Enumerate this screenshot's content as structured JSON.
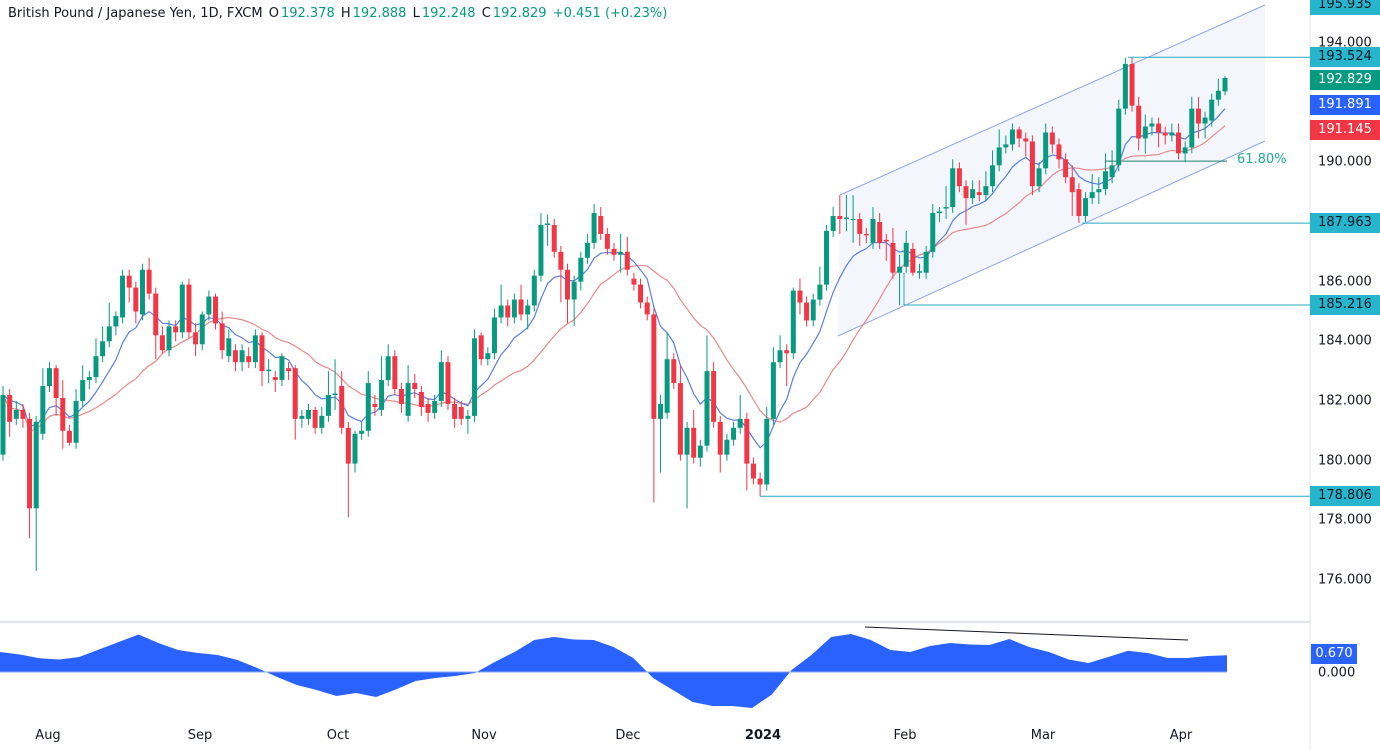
{
  "header": {
    "symbol": "British Pound / Japanese Yen, 1D, FXCM",
    "o_label": "O",
    "o": "192.378",
    "h_label": "H",
    "h": "192.888",
    "l_label": "L",
    "l": "192.248",
    "c_label": "C",
    "c": "192.829",
    "change": "+0.451 (+0.23%)"
  },
  "colors": {
    "up": "#089981",
    "down": "#f23645",
    "fast_ma": "#5b7fe0",
    "slow_ma": "#e88a8a",
    "levels": "#26a9c2",
    "channel": "#8fa6e8",
    "oscillator": "#2962ff"
  },
  "chart_data": {
    "type": "candlestick",
    "title": "British Pound / Japanese Yen, 1D, FXCM",
    "ylim": [
      175.2,
      196.2
    ],
    "y_ticks": [
      "194.000",
      "190.000",
      "186.000",
      "184.000",
      "182.000",
      "180.000",
      "178.000",
      "176.000"
    ],
    "x_ticks": [
      "Aug",
      "Sep",
      "Oct",
      "Nov",
      "Dec",
      "2024",
      "Feb",
      "Mar",
      "Apr"
    ],
    "ohlc": [
      [
        180.2,
        182.5,
        180.0,
        182.2
      ],
      [
        182.2,
        182.4,
        180.8,
        181.3
      ],
      [
        181.4,
        182.0,
        181.2,
        181.7
      ],
      [
        181.7,
        181.9,
        181.1,
        181.4
      ],
      [
        181.4,
        181.6,
        177.4,
        178.4
      ],
      [
        178.4,
        181.5,
        176.3,
        181.3
      ],
      [
        180.9,
        183.1,
        180.7,
        182.5
      ],
      [
        182.5,
        183.3,
        182.3,
        183.1
      ],
      [
        183.1,
        183.2,
        181.5,
        182.1
      ],
      [
        182.1,
        182.7,
        180.4,
        181.0
      ],
      [
        181.0,
        181.2,
        180.5,
        180.6
      ],
      [
        180.6,
        182.4,
        180.4,
        182.0
      ],
      [
        182.0,
        183.2,
        181.8,
        182.7
      ],
      [
        182.7,
        183.0,
        182.4,
        182.8
      ],
      [
        182.8,
        184.1,
        182.6,
        183.5
      ],
      [
        183.5,
        184.5,
        183.3,
        184.0
      ],
      [
        184.0,
        185.3,
        183.8,
        184.5
      ],
      [
        184.5,
        185.0,
        184.2,
        184.85
      ],
      [
        184.8,
        186.4,
        184.6,
        186.2
      ],
      [
        186.2,
        186.4,
        185.3,
        185.8
      ],
      [
        185.8,
        186.0,
        184.6,
        185.0
      ],
      [
        184.9,
        186.6,
        184.7,
        186.4
      ],
      [
        186.4,
        186.8,
        185.4,
        185.6
      ],
      [
        185.6,
        185.8,
        183.4,
        184.2
      ],
      [
        184.2,
        184.5,
        183.6,
        183.7
      ],
      [
        183.7,
        184.7,
        183.5,
        184.5
      ],
      [
        184.5,
        184.7,
        184.0,
        184.3
      ],
      [
        184.3,
        186.0,
        184.1,
        185.9
      ],
      [
        185.9,
        186.1,
        184.1,
        184.3
      ],
      [
        184.3,
        184.6,
        183.5,
        183.9
      ],
      [
        183.9,
        185.0,
        183.7,
        184.9
      ],
      [
        184.9,
        185.7,
        184.7,
        185.5
      ],
      [
        185.5,
        185.6,
        184.4,
        184.6
      ],
      [
        184.6,
        185.0,
        183.4,
        183.7
      ],
      [
        183.5,
        184.4,
        183.3,
        184.1
      ],
      [
        183.7,
        183.9,
        183.0,
        183.3
      ],
      [
        183.3,
        183.9,
        183.0,
        183.7
      ],
      [
        183.5,
        183.8,
        183.1,
        183.3
      ],
      [
        183.3,
        184.4,
        183.1,
        184.2
      ],
      [
        184.2,
        184.3,
        182.5,
        183.0
      ],
      [
        183.0,
        183.4,
        182.6,
        183.05
      ],
      [
        182.8,
        183.0,
        182.3,
        182.7
      ],
      [
        182.7,
        183.6,
        182.5,
        183.5
      ],
      [
        183.1,
        183.3,
        182.7,
        183.0
      ],
      [
        183.1,
        183.2,
        180.7,
        181.4
      ],
      [
        181.4,
        181.7,
        181.1,
        181.5
      ],
      [
        181.4,
        181.9,
        181.2,
        181.7
      ],
      [
        181.7,
        181.8,
        180.9,
        181.1
      ],
      [
        181.1,
        181.8,
        180.9,
        181.5
      ],
      [
        181.5,
        183.0,
        181.3,
        182.2
      ],
      [
        182.2,
        183.4,
        181.7,
        182.25
      ],
      [
        182.5,
        183.0,
        180.9,
        181.1
      ],
      [
        181.1,
        181.3,
        178.1,
        179.9
      ],
      [
        179.9,
        181.0,
        179.6,
        180.9
      ],
      [
        180.9,
        181.3,
        180.7,
        181.0
      ],
      [
        181.0,
        183.0,
        180.8,
        182.6
      ],
      [
        181.9,
        182.2,
        181.5,
        181.8
      ],
      [
        181.7,
        183.5,
        181.5,
        182.7
      ],
      [
        182.7,
        183.9,
        182.5,
        183.5
      ],
      [
        183.5,
        183.7,
        182.2,
        182.4
      ],
      [
        182.4,
        182.6,
        181.6,
        181.9
      ],
      [
        181.5,
        183.2,
        181.3,
        182.6
      ],
      [
        182.6,
        182.9,
        182.1,
        182.4
      ],
      [
        182.3,
        182.5,
        181.5,
        181.8
      ],
      [
        181.9,
        182.1,
        181.3,
        181.6
      ],
      [
        181.6,
        182.2,
        181.4,
        182.0
      ],
      [
        182.0,
        183.7,
        181.8,
        183.3
      ],
      [
        183.3,
        183.5,
        181.7,
        181.9
      ],
      [
        181.9,
        182.1,
        181.1,
        181.4
      ],
      [
        181.8,
        182.0,
        181.2,
        181.4
      ],
      [
        181.4,
        181.7,
        180.9,
        181.5
      ],
      [
        181.5,
        184.4,
        181.3,
        184.1
      ],
      [
        184.2,
        184.3,
        183.2,
        183.4
      ],
      [
        183.4,
        183.8,
        183.2,
        183.6
      ],
      [
        183.6,
        185.1,
        183.4,
        184.8
      ],
      [
        184.8,
        185.9,
        184.6,
        185.2
      ],
      [
        185.2,
        185.4,
        184.5,
        184.8
      ],
      [
        184.8,
        185.6,
        184.6,
        185.4
      ],
      [
        185.4,
        185.9,
        184.7,
        184.9
      ],
      [
        184.9,
        185.4,
        184.4,
        185.2
      ],
      [
        185.2,
        186.4,
        185.0,
        186.2
      ],
      [
        186.2,
        188.3,
        186.0,
        187.9
      ],
      [
        187.9,
        188.25,
        187.2,
        187.95
      ],
      [
        187.9,
        188.1,
        186.8,
        187.0
      ],
      [
        187.0,
        187.2,
        185.3,
        186.4
      ],
      [
        186.4,
        186.6,
        184.6,
        185.4
      ],
      [
        185.4,
        186.2,
        184.5,
        186.0
      ],
      [
        186.0,
        187.0,
        185.7,
        186.8
      ],
      [
        186.8,
        187.6,
        186.6,
        187.3
      ],
      [
        187.3,
        188.6,
        187.1,
        188.3
      ],
      [
        188.2,
        188.5,
        187.4,
        187.6
      ],
      [
        187.6,
        187.8,
        186.9,
        187.1
      ],
      [
        187.1,
        187.3,
        186.7,
        186.9
      ],
      [
        186.9,
        187.6,
        186.3,
        187.0
      ],
      [
        187.0,
        187.5,
        186.2,
        186.4
      ],
      [
        186.1,
        186.3,
        185.7,
        185.9
      ],
      [
        185.9,
        186.1,
        185.1,
        185.3
      ],
      [
        185.3,
        185.5,
        184.7,
        184.9
      ],
      [
        184.9,
        185.1,
        178.6,
        181.4
      ],
      [
        181.4,
        182.2,
        179.6,
        181.9
      ],
      [
        181.6,
        184.3,
        181.4,
        183.4
      ],
      [
        183.4,
        183.6,
        182.4,
        182.6
      ],
      [
        182.6,
        183.2,
        180.0,
        180.2
      ],
      [
        180.2,
        181.3,
        178.4,
        181.1
      ],
      [
        181.1,
        181.7,
        179.9,
        180.1
      ],
      [
        180.1,
        180.7,
        179.8,
        180.5
      ],
      [
        180.5,
        184.2,
        180.3,
        183.0
      ],
      [
        183.0,
        183.3,
        181.1,
        181.3
      ],
      [
        181.3,
        181.5,
        179.6,
        180.2
      ],
      [
        180.2,
        180.9,
        180.0,
        180.7
      ],
      [
        180.7,
        181.3,
        180.5,
        181.1
      ],
      [
        181.1,
        182.2,
        180.9,
        181.4
      ],
      [
        181.4,
        181.6,
        179.0,
        179.9
      ],
      [
        179.9,
        180.1,
        179.2,
        179.4
      ],
      [
        179.4,
        179.6,
        178.806,
        179.2
      ],
      [
        179.2,
        181.8,
        179.0,
        181.4
      ],
      [
        181.4,
        183.8,
        181.2,
        183.3
      ],
      [
        183.3,
        184.2,
        183.1,
        183.7
      ],
      [
        183.7,
        183.9,
        182.5,
        183.6
      ],
      [
        183.6,
        185.8,
        183.4,
        185.7
      ],
      [
        185.7,
        186.1,
        184.9,
        185.3
      ],
      [
        185.3,
        185.5,
        184.5,
        184.7
      ],
      [
        184.7,
        185.6,
        184.5,
        185.4
      ],
      [
        185.4,
        186.5,
        185.2,
        185.9
      ],
      [
        185.9,
        187.9,
        185.7,
        187.7
      ],
      [
        187.7,
        188.5,
        187.5,
        188.2
      ],
      [
        188.2,
        188.9,
        187.6,
        188.1
      ],
      [
        188.1,
        188.9,
        187.7,
        188.15
      ],
      [
        188.1,
        188.9,
        187.3,
        188.1
      ],
      [
        188.1,
        188.3,
        187.2,
        187.6
      ],
      [
        187.6,
        187.8,
        187.3,
        187.55
      ],
      [
        187.3,
        188.5,
        187.1,
        188.1
      ],
      [
        188.0,
        188.3,
        187.1,
        187.3
      ],
      [
        187.4,
        187.6,
        186.7,
        187.35
      ],
      [
        187.3,
        187.8,
        186.1,
        186.3
      ],
      [
        186.3,
        186.9,
        185.216,
        186.5
      ],
      [
        186.5,
        187.7,
        186.3,
        187.3
      ],
      [
        187.1,
        187.3,
        186.2,
        186.3
      ],
      [
        186.3,
        186.6,
        186.1,
        186.35
      ],
      [
        186.3,
        187.2,
        186.1,
        187.0
      ],
      [
        187.0,
        188.6,
        186.8,
        188.3
      ],
      [
        188.3,
        188.5,
        188.0,
        188.35
      ],
      [
        188.45,
        189.2,
        188.1,
        188.5
      ],
      [
        188.5,
        190.1,
        188.3,
        189.8
      ],
      [
        189.8,
        190.0,
        189.0,
        189.2
      ],
      [
        189.2,
        189.4,
        187.9,
        188.8
      ],
      [
        188.8,
        189.4,
        188.6,
        189.1
      ],
      [
        189.0,
        189.4,
        188.7,
        188.9
      ],
      [
        188.9,
        189.7,
        188.7,
        189.2
      ],
      [
        189.2,
        190.4,
        189.0,
        189.9
      ],
      [
        189.9,
        191.1,
        189.7,
        190.5
      ],
      [
        190.5,
        190.9,
        190.3,
        190.6
      ],
      [
        190.6,
        191.3,
        190.4,
        191.1
      ],
      [
        191.1,
        191.2,
        190.5,
        190.8
      ],
      [
        190.8,
        191.0,
        190.2,
        190.7
      ],
      [
        190.7,
        190.9,
        188.9,
        189.2
      ],
      [
        189.2,
        190.0,
        189.0,
        189.8
      ],
      [
        189.8,
        191.3,
        189.6,
        191.0
      ],
      [
        191.0,
        191.2,
        190.3,
        190.6
      ],
      [
        190.6,
        190.8,
        189.8,
        190.1
      ],
      [
        190.1,
        190.3,
        189.3,
        189.5
      ],
      [
        189.5,
        189.9,
        188.2,
        189.0
      ],
      [
        189.1,
        189.3,
        187.963,
        188.2
      ],
      [
        188.2,
        189.0,
        188.0,
        188.8
      ],
      [
        188.8,
        189.6,
        188.6,
        189.0
      ],
      [
        189.0,
        189.5,
        188.6,
        189.1
      ],
      [
        189.1,
        190.3,
        188.9,
        189.7
      ],
      [
        189.5,
        190.4,
        189.3,
        189.9
      ],
      [
        189.9,
        192.1,
        189.7,
        191.8
      ],
      [
        191.8,
        193.5,
        191.6,
        193.3
      ],
      [
        193.3,
        193.524,
        191.7,
        191.9
      ],
      [
        191.9,
        192.2,
        190.4,
        190.8
      ],
      [
        190.8,
        191.6,
        190.3,
        191.2
      ],
      [
        191.2,
        191.5,
        190.9,
        191.3
      ],
      [
        191.3,
        191.5,
        190.5,
        191.0
      ],
      [
        191.0,
        191.2,
        190.6,
        190.9
      ],
      [
        190.9,
        191.3,
        190.7,
        191.0
      ],
      [
        191.0,
        191.3,
        190.1,
        190.3
      ],
      [
        190.3,
        190.7,
        190.0,
        190.5
      ],
      [
        190.5,
        192.2,
        190.3,
        191.8
      ],
      [
        191.8,
        192.2,
        190.8,
        191.3
      ],
      [
        191.3,
        191.7,
        190.8,
        191.5
      ],
      [
        191.4,
        192.3,
        191.2,
        192.1
      ],
      [
        192.1,
        192.8,
        191.9,
        192.4
      ],
      [
        192.378,
        192.888,
        192.248,
        192.829
      ]
    ],
    "price_labels": {
      "channel_top": "195.935",
      "swing_high": "193.524",
      "last_close": "192.829",
      "fast_ma": "191.891",
      "slow_ma": "191.145",
      "axis_190": "190.000",
      "march_low": "187.963",
      "feb_low": "185.216",
      "dec_low": "178.806"
    },
    "levels": {
      "swing_high": 193.524,
      "march_low": 187.963,
      "feb_low": 185.216,
      "dec_low": 178.806,
      "fib_618": 190.04
    },
    "fib_label": "61.80%",
    "oscillator": {
      "zero_label": "0.000",
      "value_label": "0.670",
      "values": [
        0.8,
        0.7,
        0.55,
        0.5,
        0.6,
        0.9,
        1.2,
        1.5,
        1.16,
        0.88,
        0.76,
        0.68,
        0.48,
        0.16,
        -0.2,
        -0.52,
        -0.72,
        -0.96,
        -0.84,
        -1.0,
        -0.7,
        -0.36,
        -0.24,
        -0.16,
        -0.04,
        0.4,
        0.8,
        1.28,
        1.4,
        1.3,
        1.28,
        1.0,
        0.56,
        -0.24,
        -0.72,
        -1.2,
        -1.36,
        -1.36,
        -1.44,
        -0.9,
        0.08,
        0.68,
        1.4,
        1.52,
        1.28,
        0.88,
        0.8,
        1.04,
        1.16,
        1.1,
        1.08,
        1.32,
        1.0,
        0.8,
        0.5,
        0.36,
        0.6,
        0.85,
        0.76,
        0.56,
        0.56,
        0.64,
        0.67
      ]
    }
  }
}
